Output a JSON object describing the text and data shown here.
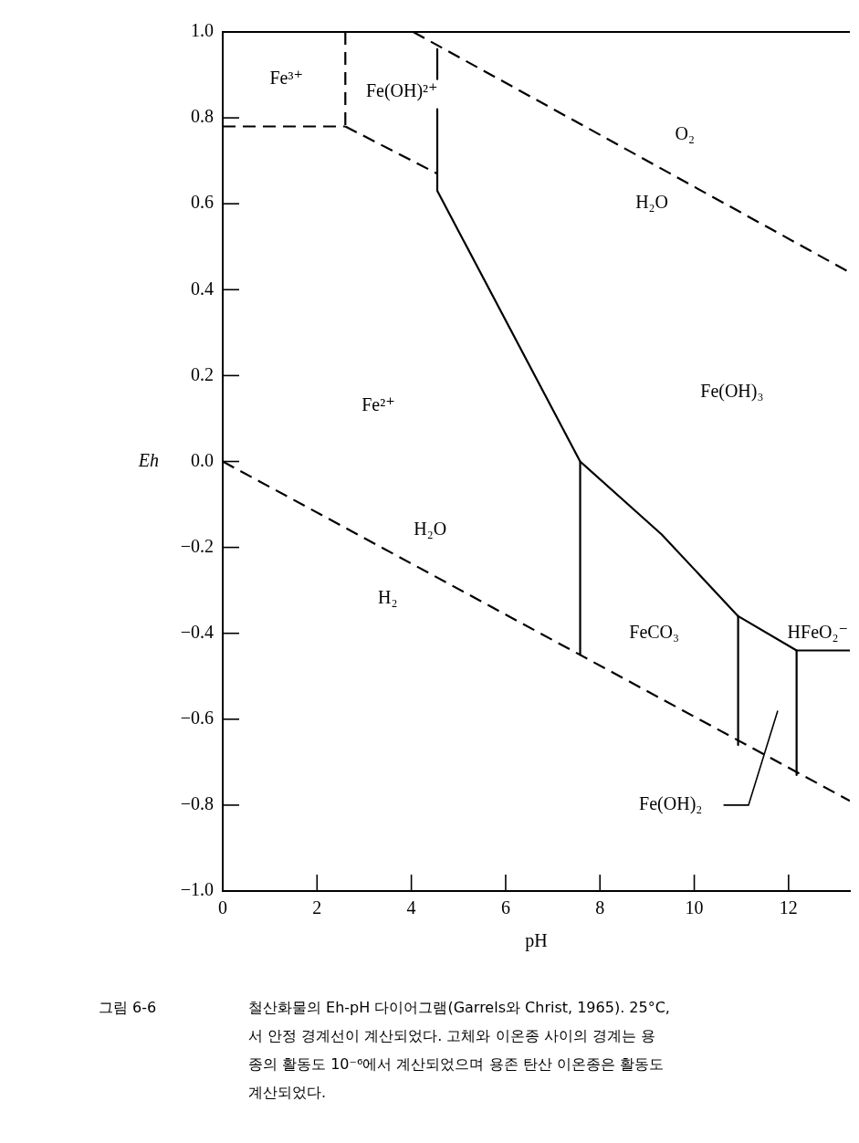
{
  "chart_data": {
    "type": "line",
    "xlabel": "pH",
    "ylabel": "Eh",
    "xlim": [
      0,
      13.3
    ],
    "ylim": [
      -1.0,
      1.0
    ],
    "xticks": [
      0,
      2,
      4,
      6,
      8,
      10,
      12
    ],
    "yticks": [
      {
        "value": -1.0,
        "label": "−1.0"
      },
      {
        "value": -0.8,
        "label": "−0.8"
      },
      {
        "value": -0.6,
        "label": "−0.6"
      },
      {
        "value": -0.4,
        "label": "−0.4"
      },
      {
        "value": -0.2,
        "label": "−0.2"
      },
      {
        "value": 0,
        "label": "0.0"
      },
      {
        "value": 0.2,
        "label": "0.2"
      },
      {
        "value": 0.4,
        "label": "0.4"
      },
      {
        "value": 0.6,
        "label": "0.6"
      },
      {
        "value": 0.8,
        "label": "0.8"
      },
      {
        "value": 1.0,
        "label": "1.0"
      }
    ],
    "grid": false,
    "legend": false,
    "marker": "none",
    "series": [
      {
        "color": "#000000",
        "line_style": "dashed",
        "x": [
          4.04,
          13.3
        ],
        "values": [
          1.0,
          0.44
        ]
      },
      {
        "color": "#000000",
        "line_style": "dashed",
        "x": [
          0,
          13.3
        ],
        "values": [
          0,
          -0.79
        ]
      },
      {
        "color": "#000000",
        "line_style": "dashed",
        "x": [
          0,
          2.6
        ],
        "values": [
          0.78,
          0.78
        ]
      },
      {
        "color": "#000000",
        "line_style": "dashed",
        "x": [
          2.6,
          2.6
        ],
        "values": [
          1.0,
          0.78
        ]
      },
      {
        "color": "#000000",
        "line_style": "dashed",
        "x": [
          2.6,
          4.55
        ],
        "values": [
          0.78,
          0.67
        ]
      },
      {
        "color": "#000000",
        "line_style": "solid",
        "x": [
          4.55,
          4.55
        ],
        "values": [
          0.96,
          0.89
        ]
      },
      {
        "color": "#000000",
        "line_style": "solid",
        "x": [
          4.55,
          4.55
        ],
        "values": [
          0.82,
          0.63
        ]
      },
      {
        "color": "#000000",
        "line_style": "solid",
        "x": [
          4.55,
          7.58,
          9.31,
          10.93,
          12.17,
          13.3
        ],
        "values": [
          0.63,
          0.0,
          -0.17,
          -0.36,
          -0.44,
          -0.44
        ]
      },
      {
        "color": "#000000",
        "line_style": "solid",
        "x": [
          7.58,
          7.58
        ],
        "values": [
          0.0,
          -0.45
        ]
      },
      {
        "color": "#000000",
        "line_style": "solid",
        "x": [
          10.93,
          10.93
        ],
        "values": [
          -0.36,
          -0.66
        ]
      },
      {
        "color": "#000000",
        "line_style": "solid",
        "x": [
          12.17,
          12.17
        ],
        "values": [
          -0.44,
          -0.73
        ]
      }
    ],
    "annotations": [
      "Fe³⁺",
      "Fe(OH)²⁺",
      "Fe²⁺",
      "Fe(OH)₃",
      "FeCO₃",
      "HFeO₂⁻",
      "Fe(OH)₂",
      "O₂",
      "H₂O",
      "H₂O",
      "H₂",
      "그림 6-6",
      "철산화물의 Eh-pH 다이어그램(Garrels와 Christ, 1965). 25°C,",
      "서 안정 경계선이 계산되었다. 고체와 이온종 사이의 경계는 용",
      "종의 활동도 10⁻⁶에서 계산되었으며 용존 탄산 이온종은 활동도",
      "계산되었다."
    ]
  }
}
